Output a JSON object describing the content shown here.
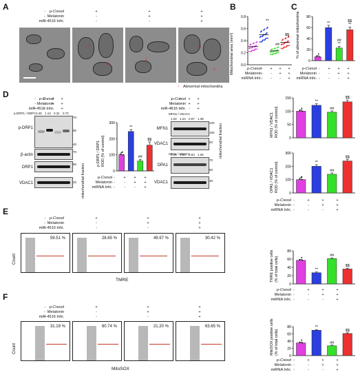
{
  "panel_labels": [
    "A",
    "B",
    "C",
    "D",
    "E",
    "F"
  ],
  "treatments": {
    "pcresol": "p-Cresol",
    "melatonin": "Melatonin",
    "mir_inh": "miR-4516 Inhi.",
    "mirna_inh": "miRNA Inhi."
  },
  "signs": {
    "cresol": [
      "-",
      "+",
      "+",
      "+"
    ],
    "melatonin": [
      "-",
      "-",
      "+",
      "+"
    ],
    "inh": [
      "-",
      "-",
      "-",
      "+"
    ]
  },
  "panel_a": {
    "legend": "Abnormal mitochondria"
  },
  "panel_d": {
    "ratio1_label": "p-DRP1 / DRP1",
    "ratio1": [
      "0.45",
      "1.13",
      "0.31",
      "0.72"
    ],
    "ratio2_label": "MFN1 / VDAC1",
    "ratio2": [
      "1.02",
      "1.24",
      "0.97",
      "1.38"
    ],
    "ratio3_label": "OPA1 / VDAC1",
    "ratio3": [
      "0.45",
      "0.93",
      "0.63",
      "1.06"
    ],
    "blots_left": [
      "p-DRP1",
      "β-actin",
      "DRP1",
      "VDAC1"
    ],
    "blots_right": [
      "MFN1",
      "VDAC1",
      "OPA1",
      "VDAC1"
    ],
    "fraction": "mitochondrial fraction",
    "mw": [
      "70",
      "50",
      "40",
      "70",
      "50",
      "20",
      "70",
      "50",
      "40",
      "30",
      "20",
      "10",
      "120",
      "100",
      "40",
      "30",
      "20",
      "10"
    ]
  },
  "panel_e": {
    "percents": [
      "59.51 %",
      "28.65 %",
      "49.97 %",
      "30.42 %"
    ],
    "xlabel": "TMRE",
    "ylabel": "Count"
  },
  "panel_f": {
    "percents": [
      "31.19 %",
      "60.74 %",
      "21.20 %",
      "63.65 %"
    ],
    "xlabel": "MitoSOX",
    "ylabel": "Count"
  },
  "colors": {
    "magenta": "#e040e0",
    "blue": "#2b3fe0",
    "green": "#35e02a",
    "red": "#ee3030"
  },
  "chart_data": [
    {
      "type": "scatter",
      "panel": "B",
      "ylabel": "Mitochondrial area (mm²)",
      "ylim": [
        0,
        0.8
      ],
      "yticks": [
        "0.0",
        "0.2",
        "0.4",
        "0.6",
        "0.8"
      ],
      "groups": 4,
      "means": [
        0.3,
        0.5,
        0.23,
        0.37
      ],
      "annotations": [
        "**",
        "##",
        "$$"
      ]
    },
    {
      "type": "bar",
      "panel": "C",
      "ylabel": "% of abnormal mitochondria",
      "ylim": [
        0,
        80
      ],
      "yticks": [
        "0",
        "20",
        "40",
        "60",
        "80"
      ],
      "values": [
        7,
        60,
        23,
        56
      ],
      "errors": [
        2,
        4,
        3,
        5
      ],
      "annotations": [
        "**",
        "**",
        "##",
        "**",
        "$$"
      ]
    },
    {
      "type": "bar",
      "panel": "D-DRP1",
      "ylabel": "p-DRP1 / DRP1",
      "ylabel2": "ROD (% of control)",
      "ylim": [
        0,
        300
      ],
      "yticks": [
        "0",
        "100",
        "200",
        "300"
      ],
      "values": [
        100,
        245,
        62,
        160
      ],
      "errors": [
        15,
        12,
        10,
        20
      ],
      "annotations": [
        "**",
        "##",
        "$$"
      ]
    },
    {
      "type": "bar",
      "panel": "D-MFN1",
      "ylabel": "MFN1 / VDAC1",
      "ylabel2": "ROD (% of control)",
      "ylim": [
        0,
        150
      ],
      "yticks": [
        "0",
        "50",
        "100",
        "150"
      ],
      "values": [
        100,
        122,
        96,
        135
      ],
      "errors": [
        5,
        6,
        5,
        7
      ],
      "annotations": [
        "**",
        "##",
        "$$"
      ]
    },
    {
      "type": "bar",
      "panel": "D-OPA1",
      "ylabel": "OPA1 / VDAC1",
      "ylabel2": "ROD (% of control)",
      "ylim": [
        0,
        300
      ],
      "yticks": [
        "0",
        "100",
        "200",
        "300"
      ],
      "values": [
        100,
        200,
        140,
        240
      ],
      "errors": [
        15,
        12,
        10,
        12
      ],
      "annotations": [
        "**",
        "##",
        "$$"
      ]
    },
    {
      "type": "bar",
      "panel": "E",
      "ylabel": "TMRE positive cells",
      "ylabel2": "(% of total cells)",
      "ylim": [
        0,
        80
      ],
      "yticks": [
        "0",
        "20",
        "40",
        "60",
        "80"
      ],
      "values": [
        57,
        27,
        61,
        36
      ],
      "errors": [
        2,
        2,
        2,
        2
      ],
      "annotations": [
        "**",
        "##",
        "$$"
      ]
    },
    {
      "type": "bar",
      "panel": "F",
      "ylabel": "MitoSOX positive cells",
      "ylabel2": "(% of total cells)",
      "ylim": [
        0,
        80
      ],
      "yticks": [
        "0",
        "20",
        "40",
        "60",
        "80"
      ],
      "values": [
        35,
        70,
        27,
        61
      ],
      "errors": [
        2,
        2,
        2,
        2
      ],
      "annotations": [
        "**",
        "##",
        "$$"
      ]
    }
  ]
}
